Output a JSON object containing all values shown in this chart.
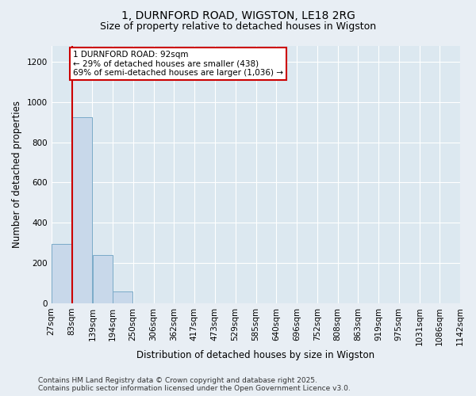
{
  "title_line1": "1, DURNFORD ROAD, WIGSTON, LE18 2RG",
  "title_line2": "Size of property relative to detached houses in Wigston",
  "xlabel": "Distribution of detached houses by size in Wigston",
  "ylabel": "Number of detached properties",
  "bar_color": "#c8d8ea",
  "bar_edge_color": "#7aaac8",
  "plot_bg_color": "#dce8f0",
  "fig_bg_color": "#e8eef4",
  "grid_color": "#ffffff",
  "annotation_text": "1 DURNFORD ROAD: 92sqm\n← 29% of detached houses are smaller (438)\n69% of semi-detached houses are larger (1,036) →",
  "annotation_box_color": "#cc0000",
  "vline_color": "#cc0000",
  "vline_x_bin_index": 1,
  "bin_edges": [
    27,
    83,
    139,
    194,
    250,
    306,
    362,
    417,
    473,
    529,
    585,
    640,
    696,
    752,
    808,
    863,
    919,
    975,
    1031,
    1086,
    1142
  ],
  "bin_counts": [
    295,
    925,
    238,
    60,
    0,
    0,
    0,
    0,
    1,
    0,
    0,
    0,
    0,
    0,
    0,
    0,
    0,
    0,
    0,
    0
  ],
  "ylim": [
    0,
    1280
  ],
  "yticks": [
    0,
    200,
    400,
    600,
    800,
    1000,
    1200
  ],
  "tick_labels": [
    "27sqm",
    "83sqm",
    "139sqm",
    "194sqm",
    "250sqm",
    "306sqm",
    "362sqm",
    "417sqm",
    "473sqm",
    "529sqm",
    "585sqm",
    "640sqm",
    "696sqm",
    "752sqm",
    "808sqm",
    "863sqm",
    "919sqm",
    "975sqm",
    "1031sqm",
    "1086sqm",
    "1142sqm"
  ],
  "footer_text": "Contains HM Land Registry data © Crown copyright and database right 2025.\nContains public sector information licensed under the Open Government Licence v3.0.",
  "title_fontsize": 10,
  "subtitle_fontsize": 9,
  "axis_label_fontsize": 8.5,
  "tick_fontsize": 7.5,
  "annotation_fontsize": 7.5,
  "footer_fontsize": 6.5
}
